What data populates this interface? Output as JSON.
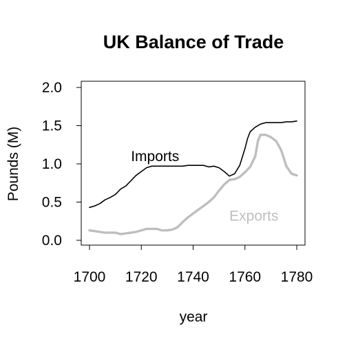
{
  "chart_data": {
    "type": "line",
    "title": "UK Balance of Trade",
    "xlabel": "year",
    "ylabel": "Pounds (M)",
    "xlim": [
      1700,
      1780
    ],
    "ylim": [
      0.0,
      2.0
    ],
    "x_ticks": [
      "1700",
      "1720",
      "1740",
      "1760",
      "1780"
    ],
    "y_ticks": [
      "0.0",
      "0.5",
      "1.0",
      "1.5",
      "2.0"
    ],
    "grid": false,
    "legend": "none",
    "series": [
      {
        "name": "Imports",
        "color": "#000000",
        "x": [
          1700,
          1702,
          1704,
          1706,
          1708,
          1710,
          1712,
          1714,
          1716,
          1718,
          1720,
          1722,
          1724,
          1726,
          1728,
          1730,
          1732,
          1734,
          1736,
          1738,
          1740,
          1742,
          1744,
          1746,
          1748,
          1750,
          1752,
          1754,
          1756,
          1758,
          1760,
          1761,
          1762,
          1764,
          1766,
          1768,
          1770,
          1772,
          1774,
          1776,
          1778,
          1780
        ],
        "values": [
          0.43,
          0.45,
          0.48,
          0.53,
          0.56,
          0.6,
          0.67,
          0.71,
          0.78,
          0.85,
          0.9,
          0.95,
          0.97,
          0.97,
          0.97,
          0.97,
          0.97,
          0.97,
          0.97,
          0.98,
          0.98,
          0.98,
          0.98,
          0.96,
          0.97,
          0.95,
          0.9,
          0.84,
          0.87,
          0.98,
          1.2,
          1.33,
          1.42,
          1.48,
          1.52,
          1.54,
          1.54,
          1.54,
          1.54,
          1.55,
          1.55,
          1.56
        ]
      },
      {
        "name": "Exports",
        "color": "#bebebe",
        "x": [
          1700,
          1702,
          1704,
          1706,
          1708,
          1710,
          1712,
          1714,
          1716,
          1718,
          1720,
          1722,
          1724,
          1726,
          1728,
          1730,
          1732,
          1734,
          1736,
          1738,
          1740,
          1742,
          1744,
          1746,
          1748,
          1750,
          1752,
          1754,
          1756,
          1758,
          1760,
          1762,
          1764,
          1765,
          1766,
          1768,
          1770,
          1772,
          1774,
          1776,
          1778,
          1780
        ],
        "values": [
          0.13,
          0.12,
          0.11,
          0.1,
          0.1,
          0.1,
          0.08,
          0.09,
          0.1,
          0.11,
          0.13,
          0.15,
          0.15,
          0.15,
          0.13,
          0.13,
          0.14,
          0.17,
          0.24,
          0.3,
          0.35,
          0.4,
          0.45,
          0.5,
          0.56,
          0.65,
          0.73,
          0.79,
          0.8,
          0.83,
          0.89,
          0.96,
          1.1,
          1.3,
          1.38,
          1.38,
          1.35,
          1.3,
          1.18,
          0.97,
          0.87,
          0.85
        ]
      }
    ],
    "annotations": [
      {
        "text": "Imports",
        "x": 1716,
        "y": 1.1,
        "color": "#000000"
      },
      {
        "text": "Exports",
        "x": 1754,
        "y": 0.32,
        "color": "#bebebe"
      }
    ]
  }
}
